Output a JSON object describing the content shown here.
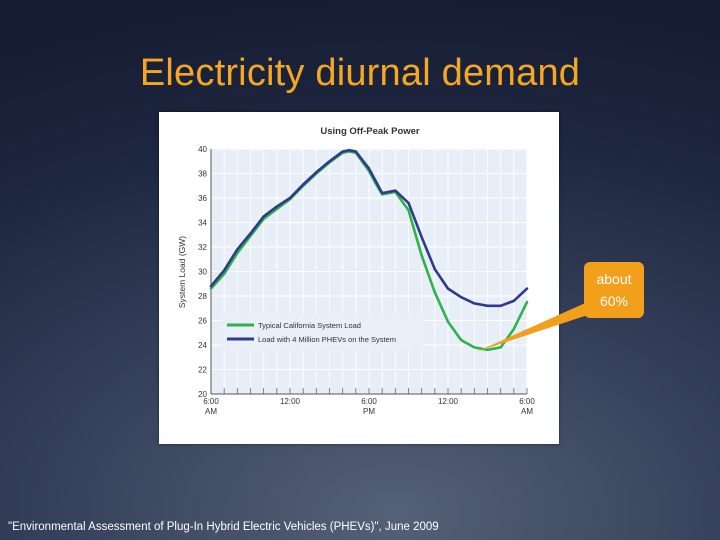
{
  "slide": {
    "title": "Electricity diurnal demand",
    "callout_text": "about 60%",
    "citation": "\"Environmental Assessment of Plug-In Hybrid Electric Vehicles (PHEVs)\", June 2009"
  },
  "colors": {
    "title": "#f5a623",
    "callout": "#f2a01c",
    "series_typical": "#2db34a",
    "series_phev": "#2e3a8c",
    "plot_bg": "#e8eef8",
    "grid": "#ffffff"
  },
  "chart_data": {
    "type": "line",
    "title": "Using Off-Peak Power",
    "xlabel": "",
    "ylabel": "System Load (GW)",
    "ylim": [
      20,
      40
    ],
    "yticks": [
      20,
      22,
      24,
      26,
      28,
      30,
      32,
      34,
      36,
      38,
      40
    ],
    "xlim": [
      0,
      24
    ],
    "x_ticks": [
      {
        "x": 0,
        "label": "6:00",
        "sub": "AM"
      },
      {
        "x": 6,
        "label": "12:00",
        "sub": ""
      },
      {
        "x": 12,
        "label": "6:00",
        "sub": "PM"
      },
      {
        "x": 18,
        "label": "12:00",
        "sub": ""
      },
      {
        "x": 24,
        "label": "6:00",
        "sub": "AM"
      }
    ],
    "grid": true,
    "legend_position": "lower-left",
    "x": [
      0,
      1,
      2,
      3,
      4,
      5,
      6,
      7,
      8,
      9,
      10,
      10.5,
      11,
      12,
      12.5,
      13,
      14,
      15,
      16,
      17,
      18,
      19,
      20,
      21,
      22,
      23,
      24
    ],
    "series": [
      {
        "name": "Typical California System Load",
        "color": "#2db34a",
        "values": [
          28.6,
          29.8,
          31.5,
          32.9,
          34.3,
          35.1,
          35.9,
          37.0,
          38.0,
          38.9,
          39.7,
          39.8,
          39.7,
          38.2,
          37.2,
          36.3,
          36.5,
          35.0,
          31.3,
          28.3,
          25.9,
          24.4,
          23.8,
          23.6,
          23.8,
          25.3,
          27.5
        ]
      },
      {
        "name": "Load with 4 Million PHEVs on the System",
        "color": "#2e3a8c",
        "values": [
          28.8,
          30.1,
          31.8,
          33.1,
          34.5,
          35.3,
          36.0,
          37.1,
          38.1,
          39.0,
          39.8,
          39.9,
          39.8,
          38.4,
          37.4,
          36.4,
          36.6,
          35.6,
          32.8,
          30.2,
          28.6,
          27.9,
          27.4,
          27.2,
          27.2,
          27.6,
          28.6
        ]
      }
    ]
  }
}
